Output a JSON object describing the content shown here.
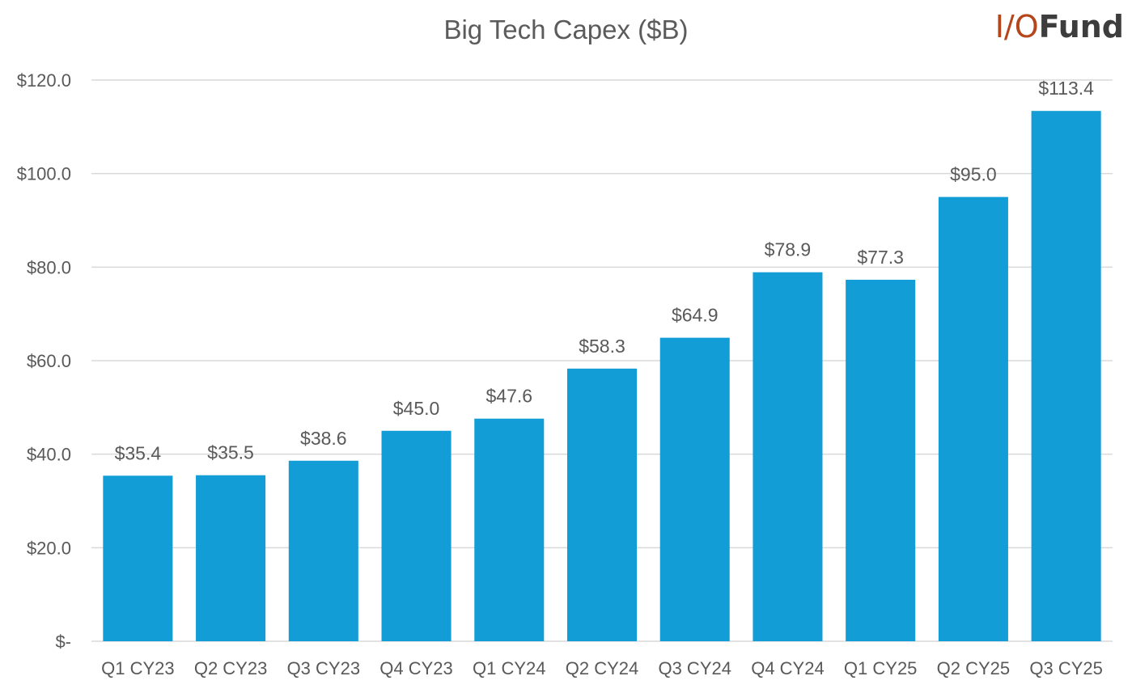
{
  "logo": {
    "io": "I/O",
    "fund": "Fund"
  },
  "colors": {
    "bar": "#129dd6",
    "grid": "#d9d9d9",
    "text": "#595959",
    "logo_accent": "#b5451b"
  },
  "chart_data": {
    "type": "bar",
    "title": "Big Tech Capex ($B)",
    "xlabel": "",
    "ylabel": "",
    "categories": [
      "Q1 CY23",
      "Q2 CY23",
      "Q3 CY23",
      "Q4 CY23",
      "Q1 CY24",
      "Q2 CY24",
      "Q3 CY24",
      "Q4 CY24",
      "Q1 CY25",
      "Q2 CY25",
      "Q3 CY25"
    ],
    "values": [
      35.4,
      35.5,
      38.6,
      45.0,
      47.6,
      58.3,
      64.9,
      78.9,
      77.3,
      95.0,
      113.4
    ],
    "data_labels": [
      "$35.4",
      "$35.5",
      "$38.6",
      "$45.0",
      "$47.6",
      "$58.3",
      "$64.9",
      "$78.9",
      "$77.3",
      "$95.0",
      "$113.4"
    ],
    "ylim": [
      0,
      120
    ],
    "yticks": [
      0,
      20,
      40,
      60,
      80,
      100,
      120
    ],
    "ytick_labels": [
      "$-",
      "$20.0",
      "$40.0",
      "$60.0",
      "$80.0",
      "$100.0",
      "$120.0"
    ],
    "grid": true,
    "legend": "none"
  }
}
